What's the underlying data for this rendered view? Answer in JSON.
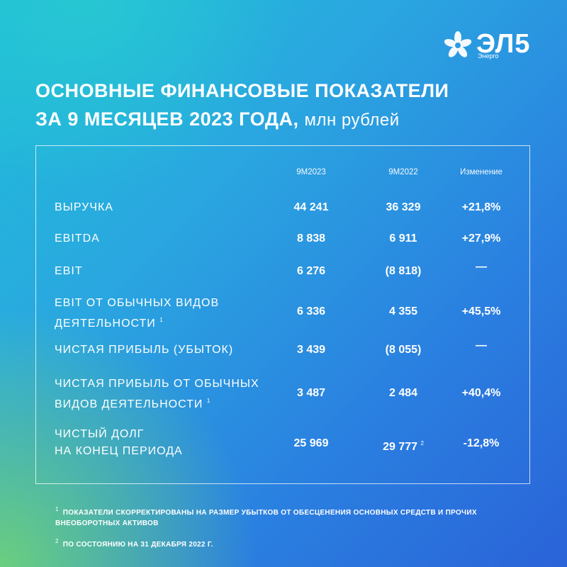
{
  "logo": {
    "text": "ЭЛ5",
    "subtext": "Энерго",
    "icon": "flower-icon"
  },
  "title": {
    "line1": "ОСНОВНЫЕ ФИНАНСОВЫЕ ПОКАЗАТЕЛИ",
    "line2": "ЗА 9 МЕСЯЦЕВ 2023 ГОДА,",
    "unit": "млн рублей"
  },
  "table": {
    "headers": {
      "col1": "9М2023",
      "col2": "9М2022",
      "col3": "Изменение"
    },
    "rows": [
      {
        "label_line1": "ВЫРУЧКА",
        "label_line2": "",
        "label_sup": "",
        "v2023": "44 241",
        "v2022": "36 329",
        "v2022_sup": "",
        "change": "+21,8%"
      },
      {
        "label_line1": "EBITDA",
        "label_line2": "",
        "label_sup": "",
        "v2023": "8 838",
        "v2022": "6 911",
        "v2022_sup": "",
        "change": "+27,9%"
      },
      {
        "label_line1": "EBIT",
        "label_line2": "",
        "label_sup": "",
        "v2023": "6 276",
        "v2022": "(8 818)",
        "v2022_sup": "",
        "change": "—"
      },
      {
        "label_line1": "EBIT ОТ ОБЫЧНЫХ ВИДОВ",
        "label_line2": "ДЕЯТЕЛЬНОСТИ",
        "label_sup": "1",
        "v2023": "6 336",
        "v2022": "4 355",
        "v2022_sup": "",
        "change": "+45,5%"
      },
      {
        "label_line1": "ЧИСТАЯ ПРИБЫЛЬ (УБЫТОК)",
        "label_line2": "",
        "label_sup": "",
        "v2023": "3 439",
        "v2022": "(8 055)",
        "v2022_sup": "",
        "change": "—"
      },
      {
        "label_line1": "ЧИСТАЯ ПРИБЫЛЬ ОТ ОБЫЧНЫХ",
        "label_line2": "ВИДОВ ДЕЯТЕЛЬНОСТИ",
        "label_sup": "1",
        "v2023": "3 487",
        "v2022": "2 484",
        "v2022_sup": "",
        "change": "+40,4%"
      },
      {
        "label_line1": "ЧИСТЫЙ ДОЛГ",
        "label_line2": "НА КОНЕЦ ПЕРИОДА",
        "label_sup": "",
        "v2023": "25 969",
        "v2022": "29 777",
        "v2022_sup": "2",
        "change": "-12,8%"
      }
    ]
  },
  "footnotes": [
    {
      "mark": "1",
      "text": "ПОКАЗАТЕЛИ СКОРРЕКТИРОВАНЫ НА РАЗМЕР УБЫТКОВ ОТ ОБЕСЦЕНЕНИЯ ОСНОВНЫХ СРЕДСТВ И ПРОЧИХ ВНЕОБОРОТНЫХ АКТИВОВ"
    },
    {
      "mark": "2",
      "text": "ПО СОСТОЯНИЮ НА 31 ДЕКАБРЯ 2022 Г."
    }
  ]
}
